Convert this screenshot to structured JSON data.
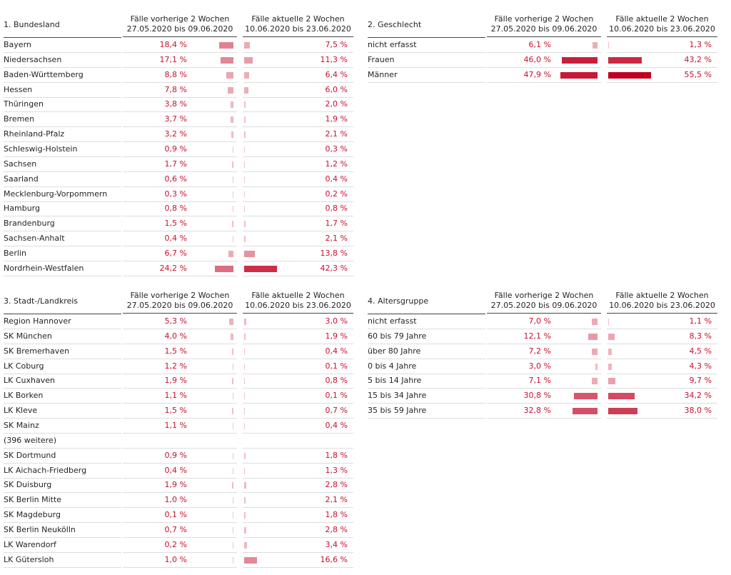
{
  "tables": [
    {
      "title": "1. Bundesland",
      "columns": [
        {
          "title": "Fälle vorherige 2 Wochen",
          "period": "27.05.2020 bis 09.06.2020"
        },
        {
          "title": "Fälle aktuelle 2 Wochen",
          "period": "10.06.2020 bis 23.06.2020"
        }
      ],
      "rows": [
        {
          "name": "Bayern",
          "prev": {
            "value": 18.4,
            "label": "18,4 %"
          },
          "curr": {
            "value": 7.5,
            "label": "7,5 %"
          }
        },
        {
          "name": "Niedersachsen",
          "prev": {
            "value": 17.1,
            "label": "17,1 %"
          },
          "curr": {
            "value": 11.3,
            "label": "11,3 %"
          }
        },
        {
          "name": "Baden-Württemberg",
          "prev": {
            "value": 8.8,
            "label": "8,8 %"
          },
          "curr": {
            "value": 6.4,
            "label": "6,4 %"
          }
        },
        {
          "name": "Hessen",
          "prev": {
            "value": 7.8,
            "label": "7,8 %"
          },
          "curr": {
            "value": 6.0,
            "label": "6,0 %"
          }
        },
        {
          "name": "Thüringen",
          "prev": {
            "value": 3.8,
            "label": "3,8 %"
          },
          "curr": {
            "value": 2.0,
            "label": "2,0 %"
          }
        },
        {
          "name": "Bremen",
          "prev": {
            "value": 3.7,
            "label": "3,7 %"
          },
          "curr": {
            "value": 1.9,
            "label": "1,9 %"
          }
        },
        {
          "name": "Rheinland-Pfalz",
          "prev": {
            "value": 3.2,
            "label": "3,2 %"
          },
          "curr": {
            "value": 2.1,
            "label": "2,1 %"
          }
        },
        {
          "name": "Schleswig-Holstein",
          "prev": {
            "value": 0.9,
            "label": "0,9 %"
          },
          "curr": {
            "value": 0.3,
            "label": "0,3 %"
          }
        },
        {
          "name": "Sachsen",
          "prev": {
            "value": 1.7,
            "label": "1,7 %"
          },
          "curr": {
            "value": 1.2,
            "label": "1,2 %"
          }
        },
        {
          "name": "Saarland",
          "prev": {
            "value": 0.6,
            "label": "0,6 %"
          },
          "curr": {
            "value": 0.4,
            "label": "0,4 %"
          }
        },
        {
          "name": "Mecklenburg-Vorpommern",
          "prev": {
            "value": 0.3,
            "label": "0,3 %"
          },
          "curr": {
            "value": 0.2,
            "label": "0,2 %"
          }
        },
        {
          "name": "Hamburg",
          "prev": {
            "value": 0.8,
            "label": "0,8 %"
          },
          "curr": {
            "value": 0.8,
            "label": "0,8 %"
          }
        },
        {
          "name": "Brandenburg",
          "prev": {
            "value": 1.5,
            "label": "1,5 %"
          },
          "curr": {
            "value": 1.7,
            "label": "1,7 %"
          }
        },
        {
          "name": "Sachsen-Anhalt",
          "prev": {
            "value": 0.4,
            "label": "0,4 %"
          },
          "curr": {
            "value": 2.1,
            "label": "2,1 %"
          }
        },
        {
          "name": "Berlin",
          "prev": {
            "value": 6.7,
            "label": "6,7 %"
          },
          "curr": {
            "value": 13.8,
            "label": "13,8 %"
          }
        },
        {
          "name": "Nordrhein-Westfalen",
          "prev": {
            "value": 24.2,
            "label": "24,2 %"
          },
          "curr": {
            "value": 42.3,
            "label": "42,3 %"
          }
        }
      ]
    },
    {
      "title": "2. Geschlecht",
      "columns": [
        {
          "title": "Fälle vorherige 2 Wochen",
          "period": "27.05.2020 bis 09.06.2020"
        },
        {
          "title": "Fälle aktuelle 2 Wochen",
          "period": "10.06.2020 bis 23.06.2020"
        }
      ],
      "rows": [
        {
          "name": "nicht erfasst",
          "prev": {
            "value": 6.1,
            "label": "6,1 %"
          },
          "curr": {
            "value": 1.3,
            "label": "1,3 %"
          }
        },
        {
          "name": "Frauen",
          "prev": {
            "value": 46.0,
            "label": "46,0 %"
          },
          "curr": {
            "value": 43.2,
            "label": "43,2 %"
          }
        },
        {
          "name": "Männer",
          "prev": {
            "value": 47.9,
            "label": "47,9 %"
          },
          "curr": {
            "value": 55.5,
            "label": "55,5 %"
          }
        }
      ]
    },
    {
      "title": "3. Stadt-/Landkreis",
      "columns": [
        {
          "title": "Fälle vorherige 2 Wochen",
          "period": "27.05.2020 bis 09.06.2020"
        },
        {
          "title": "Fälle aktuelle 2 Wochen",
          "period": "10.06.2020 bis 23.06.2020"
        }
      ],
      "rows": [
        {
          "name": "Region Hannover",
          "prev": {
            "value": 5.3,
            "label": "5,3 %"
          },
          "curr": {
            "value": 3.0,
            "label": "3,0 %"
          }
        },
        {
          "name": "SK München",
          "prev": {
            "value": 4.0,
            "label": "4,0 %"
          },
          "curr": {
            "value": 1.9,
            "label": "1,9 %"
          }
        },
        {
          "name": "SK Bremerhaven",
          "prev": {
            "value": 1.5,
            "label": "1,5 %"
          },
          "curr": {
            "value": 0.4,
            "label": "0,4 %"
          }
        },
        {
          "name": "LK Coburg",
          "prev": {
            "value": 1.2,
            "label": "1,2 %"
          },
          "curr": {
            "value": 0.1,
            "label": "0,1 %"
          }
        },
        {
          "name": "LK Cuxhaven",
          "prev": {
            "value": 1.9,
            "label": "1,9 %"
          },
          "curr": {
            "value": 0.8,
            "label": "0,8 %"
          }
        },
        {
          "name": "LK Borken",
          "prev": {
            "value": 1.1,
            "label": "1,1 %"
          },
          "curr": {
            "value": 0.1,
            "label": "0,1 %"
          }
        },
        {
          "name": "LK Kleve",
          "prev": {
            "value": 1.5,
            "label": "1,5 %"
          },
          "curr": {
            "value": 0.7,
            "label": "0,7 %"
          }
        },
        {
          "name": "SK Mainz",
          "prev": {
            "value": 1.1,
            "label": "1,1 %"
          },
          "curr": {
            "value": 0.4,
            "label": "0,4 %"
          }
        },
        {
          "name": "(396 weitere)",
          "prev": null,
          "curr": null
        },
        {
          "name": "SK Dortmund",
          "prev": {
            "value": 0.9,
            "label": "0,9 %"
          },
          "curr": {
            "value": 1.8,
            "label": "1,8 %"
          }
        },
        {
          "name": "LK Aichach-Friedberg",
          "prev": {
            "value": 0.4,
            "label": "0,4 %"
          },
          "curr": {
            "value": 1.3,
            "label": "1,3 %"
          }
        },
        {
          "name": "SK Duisburg",
          "prev": {
            "value": 1.9,
            "label": "1,9 %"
          },
          "curr": {
            "value": 2.8,
            "label": "2,8 %"
          }
        },
        {
          "name": "SK Berlin Mitte",
          "prev": {
            "value": 1.0,
            "label": "1,0 %"
          },
          "curr": {
            "value": 2.1,
            "label": "2,1 %"
          }
        },
        {
          "name": "SK Magdeburg",
          "prev": {
            "value": 0.1,
            "label": "0,1 %"
          },
          "curr": {
            "value": 1.8,
            "label": "1,8 %"
          }
        },
        {
          "name": "SK Berlin Neukölln",
          "prev": {
            "value": 0.7,
            "label": "0,7 %"
          },
          "curr": {
            "value": 2.8,
            "label": "2,8 %"
          }
        },
        {
          "name": "LK Warendorf",
          "prev": {
            "value": 0.2,
            "label": "0,2 %"
          },
          "curr": {
            "value": 3.4,
            "label": "3,4 %"
          }
        },
        {
          "name": "LK Gütersloh",
          "prev": {
            "value": 1.0,
            "label": "1,0 %"
          },
          "curr": {
            "value": 16.6,
            "label": "16,6 %"
          }
        }
      ]
    },
    {
      "title": "4. Altersgruppe",
      "columns": [
        {
          "title": "Fälle vorherige 2 Wochen",
          "period": "27.05.2020 bis 09.06.2020"
        },
        {
          "title": "Fälle aktuelle 2 Wochen",
          "period": "10.06.2020 bis 23.06.2020"
        }
      ],
      "rows": [
        {
          "name": "nicht erfasst",
          "prev": {
            "value": 7.0,
            "label": "7,0 %"
          },
          "curr": {
            "value": 1.1,
            "label": "1,1 %"
          }
        },
        {
          "name": "60 bis 79 Jahre",
          "prev": {
            "value": 12.1,
            "label": "12,1 %"
          },
          "curr": {
            "value": 8.3,
            "label": "8,3 %"
          }
        },
        {
          "name": "über 80 Jahre",
          "prev": {
            "value": 7.2,
            "label": "7,2 %"
          },
          "curr": {
            "value": 4.5,
            "label": "4,5 %"
          }
        },
        {
          "name": "0 bis 4 Jahre",
          "prev": {
            "value": 3.0,
            "label": "3,0 %"
          },
          "curr": {
            "value": 4.3,
            "label": "4,3 %"
          }
        },
        {
          "name": "5 bis 14 Jahre",
          "prev": {
            "value": 7.1,
            "label": "7,1 %"
          },
          "curr": {
            "value": 9.7,
            "label": "9,7 %"
          }
        },
        {
          "name": "15 bis 34 Jahre",
          "prev": {
            "value": 30.8,
            "label": "30,8 %"
          },
          "curr": {
            "value": 34.2,
            "label": "34,2 %"
          }
        },
        {
          "name": "35 bis 59 Jahre",
          "prev": {
            "value": 32.8,
            "label": "32,8 %"
          },
          "curr": {
            "value": 38.0,
            "label": "38,0 %"
          }
        }
      ]
    }
  ]
}
